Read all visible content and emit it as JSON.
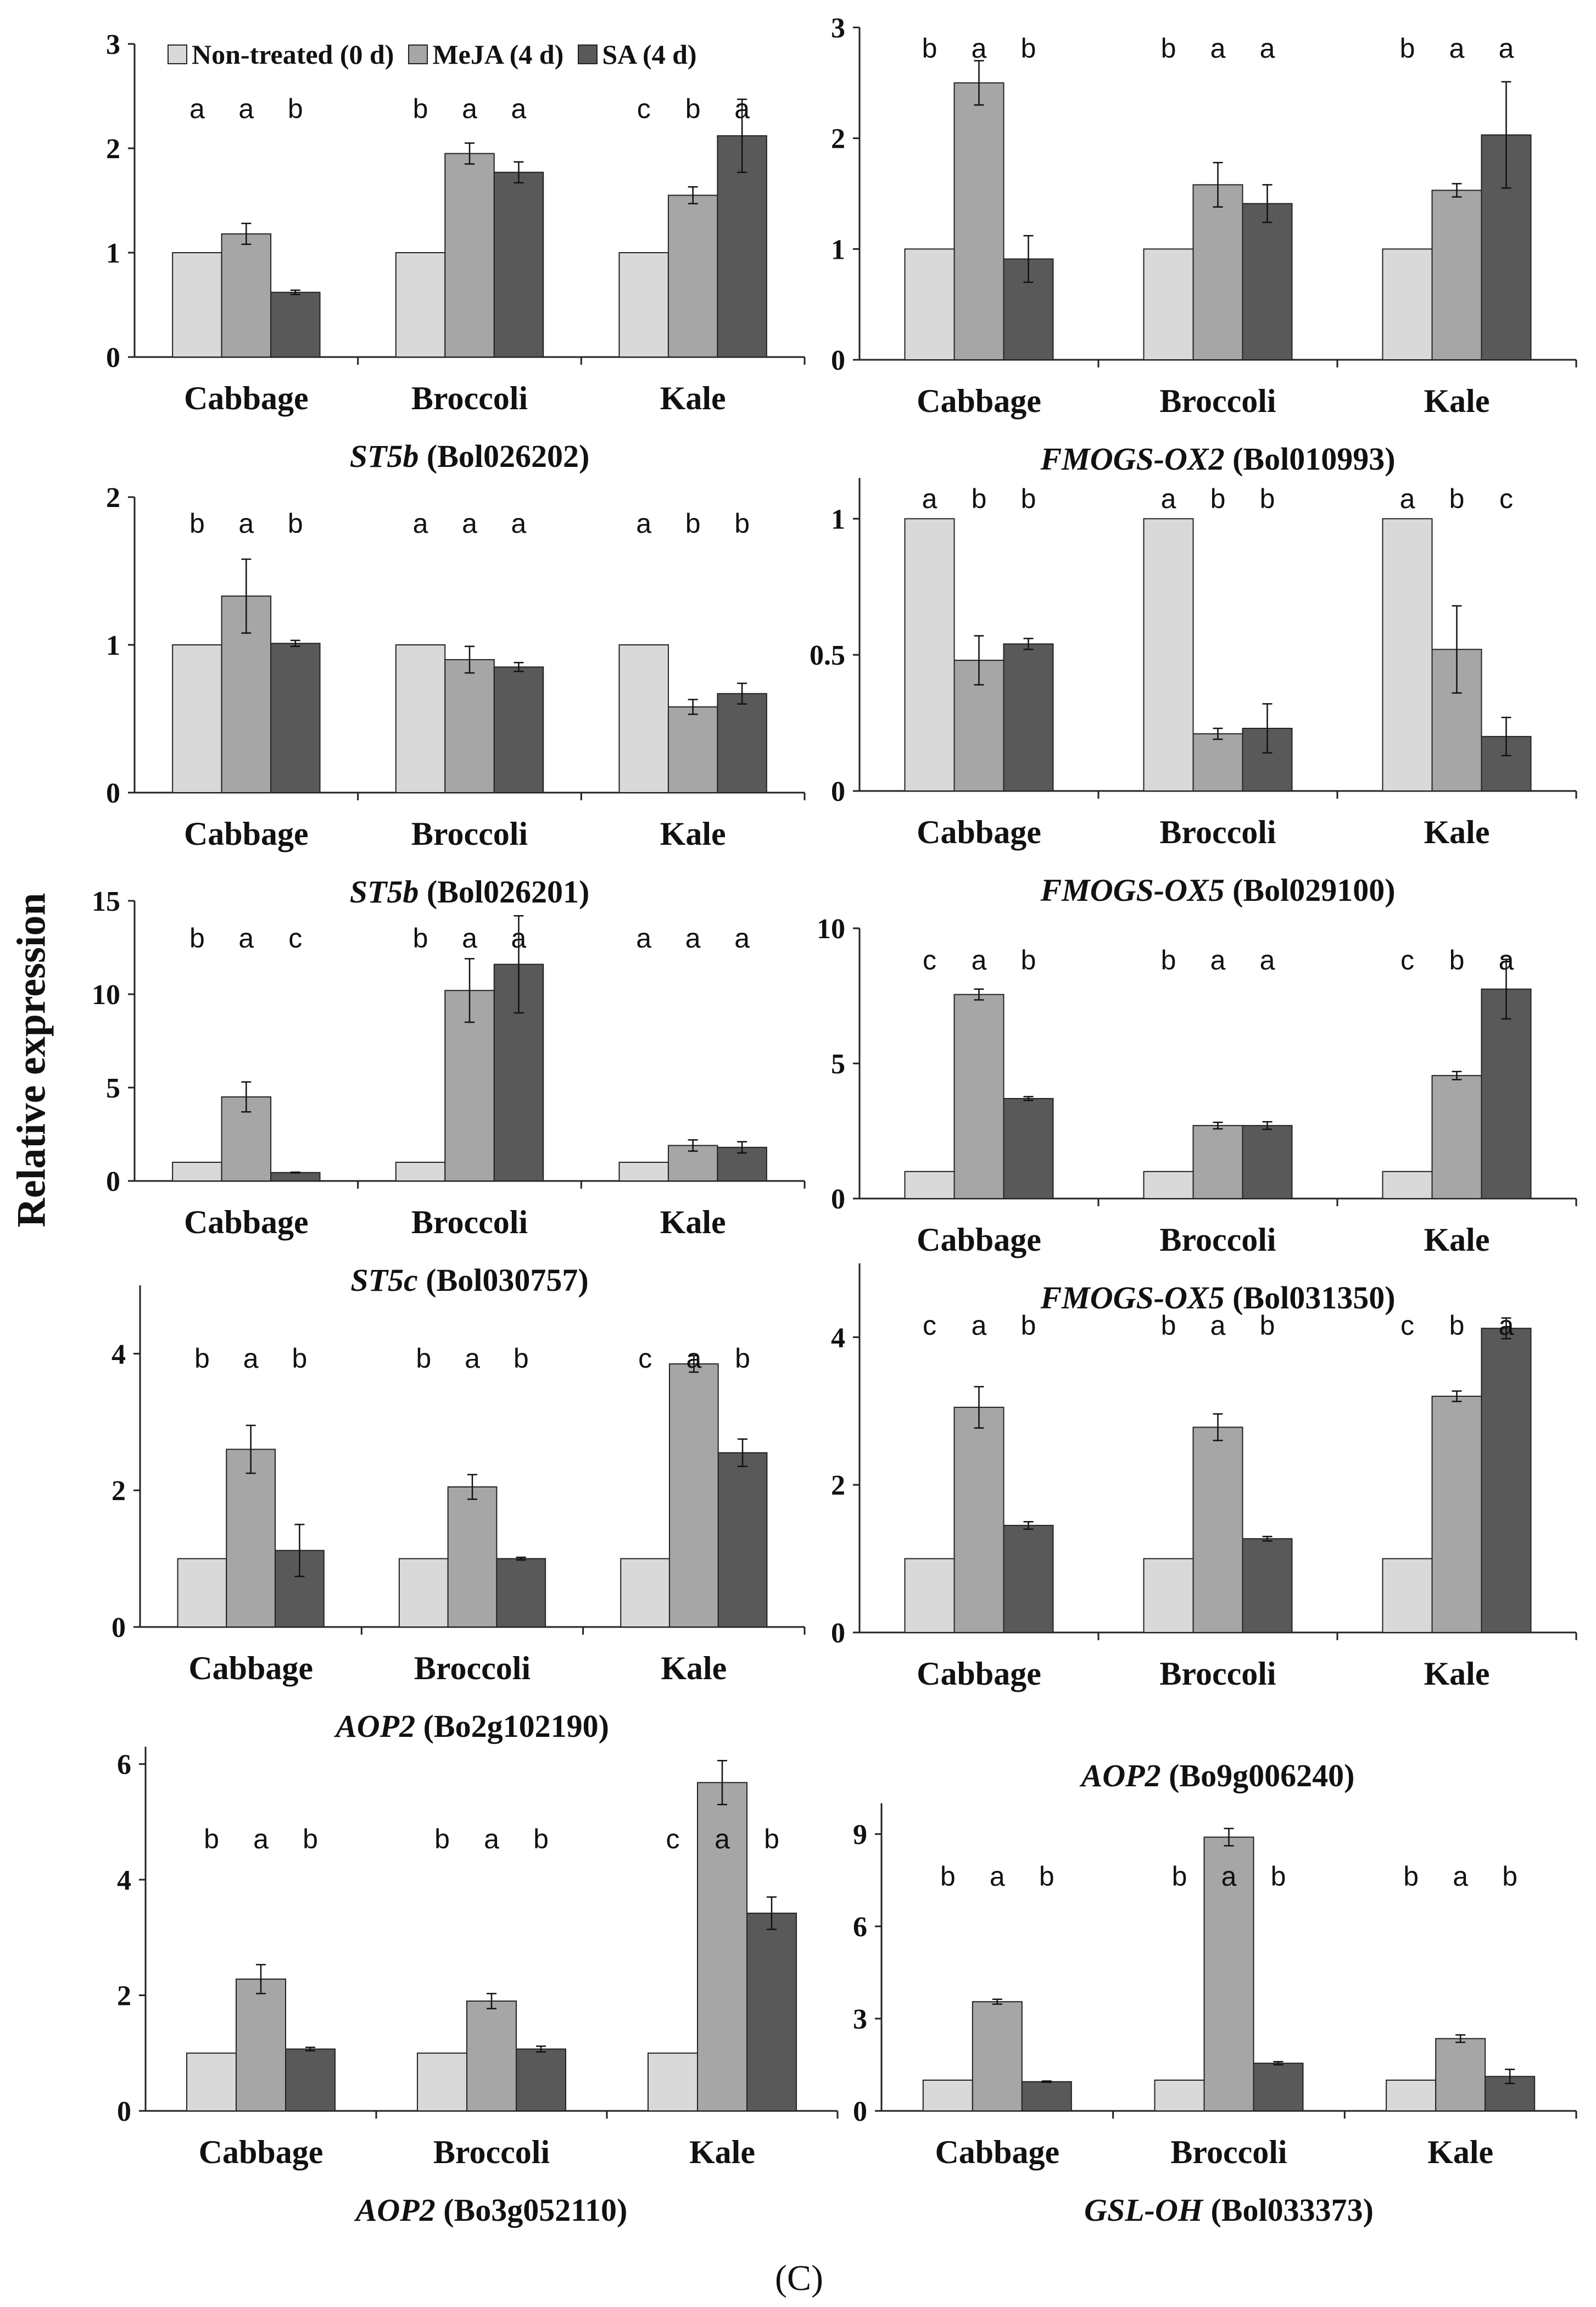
{
  "y_axis_label": "Relative expression",
  "panel_label": "(C)",
  "legend": [
    {
      "label": "Non-treated (0 d)",
      "color": "#d9d9d9"
    },
    {
      "label": "MeJA (4 d)",
      "color": "#a6a6a6"
    },
    {
      "label": "SA (4 d)",
      "color": "#595959"
    }
  ],
  "chart_data": [
    {
      "type": "bar",
      "title_gene": "ST5b",
      "title_id": "Bol026202",
      "categories": [
        "Cabbage",
        "Broccoli",
        "Kale"
      ],
      "series": [
        {
          "name": "Non-treated (0 d)",
          "values": [
            1.0,
            1.0,
            1.0
          ],
          "errors": [
            0,
            0,
            0
          ]
        },
        {
          "name": "MeJA (4 d)",
          "values": [
            1.18,
            1.95,
            1.55
          ],
          "errors": [
            0.1,
            0.1,
            0.08
          ]
        },
        {
          "name": "SA (4 d)",
          "values": [
            0.62,
            1.77,
            2.12
          ],
          "errors": [
            0.02,
            0.1,
            0.35
          ]
        }
      ],
      "letters": [
        [
          "a",
          "a",
          "b"
        ],
        [
          "b",
          "a",
          "a"
        ],
        [
          "c",
          "b",
          "a"
        ]
      ],
      "ylim": [
        0,
        3
      ],
      "yticks": [
        0,
        1,
        2,
        3
      ]
    },
    {
      "type": "bar",
      "title_gene": "FMOGS-OX2",
      "title_id": "Bol010993",
      "categories": [
        "Cabbage",
        "Broccoli",
        "Kale"
      ],
      "series": [
        {
          "name": "Non-treated (0 d)",
          "values": [
            1.0,
            1.0,
            1.0
          ],
          "errors": [
            0,
            0,
            0
          ]
        },
        {
          "name": "MeJA (4 d)",
          "values": [
            2.5,
            1.58,
            1.53
          ],
          "errors": [
            0.2,
            0.2,
            0.06
          ]
        },
        {
          "name": "SA (4 d)",
          "values": [
            0.91,
            1.41,
            2.03
          ],
          "errors": [
            0.21,
            0.17,
            0.48
          ]
        }
      ],
      "letters": [
        [
          "b",
          "a",
          "b"
        ],
        [
          "b",
          "a",
          "a"
        ],
        [
          "b",
          "a",
          "a"
        ]
      ],
      "ylim": [
        0,
        3
      ],
      "yticks": [
        0,
        1,
        2,
        3
      ]
    },
    {
      "type": "bar",
      "title_gene": "ST5b",
      "title_id": "Bol026201",
      "categories": [
        "Cabbage",
        "Broccoli",
        "Kale"
      ],
      "series": [
        {
          "name": "Non-treated (0 d)",
          "values": [
            1.0,
            1.0,
            1.0
          ],
          "errors": [
            0,
            0,
            0
          ]
        },
        {
          "name": "MeJA (4 d)",
          "values": [
            1.33,
            0.9,
            0.58
          ],
          "errors": [
            0.25,
            0.09,
            0.05
          ]
        },
        {
          "name": "SA (4 d)",
          "values": [
            1.01,
            0.85,
            0.67
          ],
          "errors": [
            0.02,
            0.03,
            0.07
          ]
        }
      ],
      "letters": [
        [
          "b",
          "a",
          "b"
        ],
        [
          "a",
          "a",
          "a"
        ],
        [
          "a",
          "b",
          "b"
        ]
      ],
      "ylim": [
        0,
        2
      ],
      "yticks": [
        0,
        1,
        2
      ]
    },
    {
      "type": "bar",
      "title_gene": "FMOGS-OX5",
      "title_id": "Bol029100",
      "categories": [
        "Cabbage",
        "Broccoli",
        "Kale"
      ],
      "series": [
        {
          "name": "Non-treated (0 d)",
          "values": [
            1.0,
            1.0,
            1.0
          ],
          "errors": [
            0,
            0,
            0
          ]
        },
        {
          "name": "MeJA (4 d)",
          "values": [
            0.48,
            0.21,
            0.52
          ],
          "errors": [
            0.09,
            0.02,
            0.16
          ]
        },
        {
          "name": "SA (4 d)",
          "values": [
            0.54,
            0.23,
            0.2
          ],
          "errors": [
            0.02,
            0.09,
            0.07
          ]
        }
      ],
      "letters": [
        [
          "a",
          "b",
          "b"
        ],
        [
          "a",
          "b",
          "b"
        ],
        [
          "a",
          "b",
          "c"
        ]
      ],
      "ylim": [
        0,
        1.15
      ],
      "yticks": [
        0,
        0.5,
        1
      ],
      "ytick_labels": [
        "0",
        "0.5",
        "1"
      ]
    },
    {
      "type": "bar",
      "title_gene": "ST5c",
      "title_id": "Bol030757",
      "categories": [
        "Cabbage",
        "Broccoli",
        "Kale"
      ],
      "series": [
        {
          "name": "Non-treated (0 d)",
          "values": [
            1.0,
            1.0,
            1.0
          ],
          "errors": [
            0,
            0,
            0
          ]
        },
        {
          "name": "MeJA (4 d)",
          "values": [
            4.5,
            10.2,
            1.9
          ],
          "errors": [
            0.8,
            1.7,
            0.3
          ]
        },
        {
          "name": "SA (4 d)",
          "values": [
            0.45,
            11.6,
            1.8
          ],
          "errors": [
            0.02,
            2.6,
            0.3
          ]
        }
      ],
      "letters": [
        [
          "b",
          "a",
          "c"
        ],
        [
          "b",
          "a",
          "a"
        ],
        [
          "a",
          "a",
          "a"
        ]
      ],
      "ylim": [
        0,
        15
      ],
      "yticks": [
        0,
        5,
        10,
        15
      ]
    },
    {
      "type": "bar",
      "title_gene": "FMOGS-OX5",
      "title_id": "Bol031350",
      "categories": [
        "Cabbage",
        "Broccoli",
        "Kale"
      ],
      "series": [
        {
          "name": "Non-treated (0 d)",
          "values": [
            1.0,
            1.0,
            1.0
          ],
          "errors": [
            0,
            0,
            0
          ]
        },
        {
          "name": "MeJA (4 d)",
          "values": [
            7.55,
            2.7,
            4.55
          ],
          "errors": [
            0.2,
            0.12,
            0.15
          ]
        },
        {
          "name": "SA (4 d)",
          "values": [
            3.7,
            2.7,
            7.75
          ],
          "errors": [
            0.07,
            0.14,
            1.1
          ]
        }
      ],
      "letters": [
        [
          "c",
          "a",
          "b"
        ],
        [
          "b",
          "a",
          "a"
        ],
        [
          "c",
          "b",
          "a"
        ]
      ],
      "ylim": [
        0,
        10
      ],
      "yticks": [
        0,
        5,
        10
      ]
    },
    {
      "type": "bar",
      "title_gene": "AOP2",
      "title_id": "Bo2g102190",
      "categories": [
        "Cabbage",
        "Broccoli",
        "Kale"
      ],
      "series": [
        {
          "name": "Non-treated (0 d)",
          "values": [
            1.0,
            1.0,
            1.0
          ],
          "errors": [
            0,
            0,
            0
          ]
        },
        {
          "name": "MeJA (4 d)",
          "values": [
            2.6,
            2.05,
            3.85
          ],
          "errors": [
            0.35,
            0.18,
            0.12
          ]
        },
        {
          "name": "SA (4 d)",
          "values": [
            1.12,
            1.0,
            2.55
          ],
          "errors": [
            0.38,
            0.02,
            0.2
          ]
        }
      ],
      "letters": [
        [
          "b",
          "a",
          "b"
        ],
        [
          "b",
          "a",
          "b"
        ],
        [
          "c",
          "a",
          "b"
        ]
      ],
      "ylim": [
        0,
        5
      ],
      "yticks": [
        0,
        2,
        4
      ]
    },
    {
      "type": "bar",
      "title_gene": "AOP2",
      "title_id": "Bo9g006240",
      "categories": [
        "Cabbage",
        "Broccoli",
        "Kale"
      ],
      "series": [
        {
          "name": "Non-treated (0 d)",
          "values": [
            1.0,
            1.0,
            1.0
          ],
          "errors": [
            0,
            0,
            0
          ]
        },
        {
          "name": "MeJA (4 d)",
          "values": [
            3.05,
            2.78,
            3.2
          ],
          "errors": [
            0.28,
            0.18,
            0.07
          ]
        },
        {
          "name": "SA (4 d)",
          "values": [
            1.45,
            1.27,
            4.12
          ],
          "errors": [
            0.05,
            0.03,
            0.14
          ]
        }
      ],
      "letters": [
        [
          "c",
          "a",
          "b"
        ],
        [
          "b",
          "a",
          "b"
        ],
        [
          "c",
          "b",
          "a"
        ]
      ],
      "ylim": [
        0,
        5
      ],
      "yticks": [
        0,
        2,
        4
      ]
    },
    {
      "type": "bar",
      "title_gene": "AOP2",
      "title_id": "Bo3g052110",
      "categories": [
        "Cabbage",
        "Broccoli",
        "Kale"
      ],
      "series": [
        {
          "name": "Non-treated (0 d)",
          "values": [
            1.0,
            1.0,
            1.0
          ],
          "errors": [
            0,
            0,
            0
          ]
        },
        {
          "name": "MeJA (4 d)",
          "values": [
            2.28,
            1.9,
            5.68
          ],
          "errors": [
            0.25,
            0.13,
            0.38
          ]
        },
        {
          "name": "SA (4 d)",
          "values": [
            1.07,
            1.07,
            3.42
          ],
          "errors": [
            0.03,
            0.05,
            0.28
          ]
        }
      ],
      "letters": [
        [
          "b",
          "a",
          "b"
        ],
        [
          "b",
          "a",
          "b"
        ],
        [
          "c",
          "a",
          "b"
        ]
      ],
      "ylim": [
        0,
        6.3
      ],
      "yticks": [
        0,
        2,
        4,
        6
      ]
    },
    {
      "type": "bar",
      "title_gene": "GSL-OH",
      "title_id": "Bol033373",
      "categories": [
        "Cabbage",
        "Broccoli",
        "Kale"
      ],
      "series": [
        {
          "name": "Non-treated (0 d)",
          "values": [
            1.0,
            1.0,
            1.0
          ],
          "errors": [
            0,
            0,
            0
          ]
        },
        {
          "name": "MeJA (4 d)",
          "values": [
            3.55,
            8.9,
            2.35
          ],
          "errors": [
            0.08,
            0.28,
            0.12
          ]
        },
        {
          "name": "SA (4 d)",
          "values": [
            0.95,
            1.55,
            1.12
          ],
          "errors": [
            0.02,
            0.05,
            0.23
          ]
        }
      ],
      "letters": [
        [
          "b",
          "a",
          "b"
        ],
        [
          "b",
          "a",
          "b"
        ],
        [
          "b",
          "a",
          "b"
        ]
      ],
      "ylim": [
        0,
        10
      ],
      "yticks": [
        0,
        3,
        6,
        9
      ]
    }
  ]
}
